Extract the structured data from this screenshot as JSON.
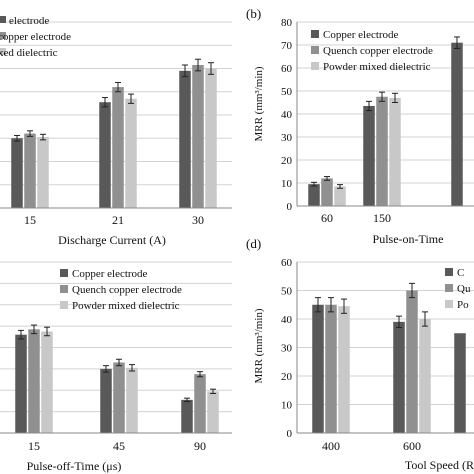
{
  "panels": [
    {
      "letter": "",
      "chart_data": {
        "type": "bar",
        "title": "",
        "xlabel": "Discharge Current (A)",
        "ylabel": "",
        "categories": [
          "15",
          "21",
          "30"
        ],
        "ylim": [
          0,
          80
        ],
        "ticks": [],
        "grid": true,
        "legend_position": "top-left",
        "series": [
          {
            "name": "Copper electrode",
            "values": [
              30,
              45.5,
              59
            ],
            "errors": [
              1.2,
              2,
              2.5
            ]
          },
          {
            "name": "Quench copper electrode",
            "values": [
              32,
              52,
              61.5
            ],
            "errors": [
              1.2,
              2,
              2.5
            ]
          },
          {
            "name": "Powder mixed dielectric",
            "values": [
              30.5,
              47,
              60
            ],
            "errors": [
              1.2,
              2,
              2.5
            ]
          }
        ],
        "legend_labels": [
          "electrode",
          "copper electrode",
          "xed dielectric"
        ]
      }
    },
    {
      "letter": "(b)",
      "chart_data": {
        "type": "bar",
        "title": "",
        "xlabel": "Pulse-on-Time",
        "ylabel": "MRR (mm³/min)",
        "categories": [
          "60",
          "150",
          ""
        ],
        "ylim": [
          0,
          80
        ],
        "ticks": [
          "0",
          "10",
          "20",
          "30",
          "40",
          "50",
          "60",
          "70",
          "80"
        ],
        "grid": true,
        "legend_position": "top-left",
        "series": [
          {
            "name": "Copper electrode",
            "values": [
              9.5,
              43.5,
              71
            ],
            "errors": [
              0.8,
              2,
              2.5
            ]
          },
          {
            "name": "Quench copper electrode",
            "values": [
              12,
              47.5,
              0
            ],
            "errors": [
              0.8,
              2,
              0
            ]
          },
          {
            "name": "Powder mixed dielectric",
            "values": [
              8.5,
              47,
              0
            ],
            "errors": [
              0.8,
              2,
              0
            ]
          }
        ],
        "legend_labels": [
          "Copper electrode",
          "Quench copper electrode",
          "Powder mixed dielectric"
        ]
      }
    },
    {
      "letter": "",
      "chart_data": {
        "type": "bar",
        "title": "",
        "xlabel": "Pulse-off-Time (μs)",
        "ylabel": "",
        "categories": [
          "15",
          "45",
          "90"
        ],
        "ylim": [
          0,
          80
        ],
        "ticks": [],
        "grid": true,
        "legend_position": "top-right",
        "series": [
          {
            "name": "Copper electrode",
            "values": [
              46,
              30,
              15.5
            ],
            "errors": [
              2,
              1.5,
              0.8
            ]
          },
          {
            "name": "Quench copper electrode",
            "values": [
              48.5,
              33,
              27.5
            ],
            "errors": [
              2,
              1.5,
              1.2
            ]
          },
          {
            "name": "Powder mixed dielectric",
            "values": [
              47.5,
              30.5,
              19.5
            ],
            "errors": [
              2,
              1.5,
              1
            ]
          }
        ],
        "legend_labels": [
          "Copper electrode",
          "Quench copper electrode",
          "Powder mixed dielectric"
        ]
      }
    },
    {
      "letter": "(d)",
      "chart_data": {
        "type": "bar",
        "title": "",
        "xlabel": "Tool Speed (R",
        "ylabel": "MRR (mm³/min)",
        "categories": [
          "400",
          "600",
          ""
        ],
        "ylim": [
          0,
          60
        ],
        "ticks": [
          "0",
          "10",
          "20",
          "30",
          "40",
          "50",
          "60"
        ],
        "grid": true,
        "legend_position": "top-right",
        "series": [
          {
            "name": "Copper electrode",
            "values": [
              45,
              39,
              35
            ],
            "errors": [
              2.5,
              2,
              0
            ]
          },
          {
            "name": "Quench copper electrode",
            "values": [
              45,
              50,
              0
            ],
            "errors": [
              2.5,
              2.5,
              0
            ]
          },
          {
            "name": "Powder mixed dielectric",
            "values": [
              44.5,
              40,
              0
            ],
            "errors": [
              2.5,
              2.5,
              0
            ]
          }
        ],
        "legend_labels": [
          "C",
          "Qu",
          "Po"
        ]
      }
    }
  ],
  "colors": {
    "series": [
      "#595959",
      "#909090",
      "#c8c8c8"
    ],
    "grid": "#d3d3d3",
    "axis": "#888888",
    "errorbar": "#222222"
  }
}
